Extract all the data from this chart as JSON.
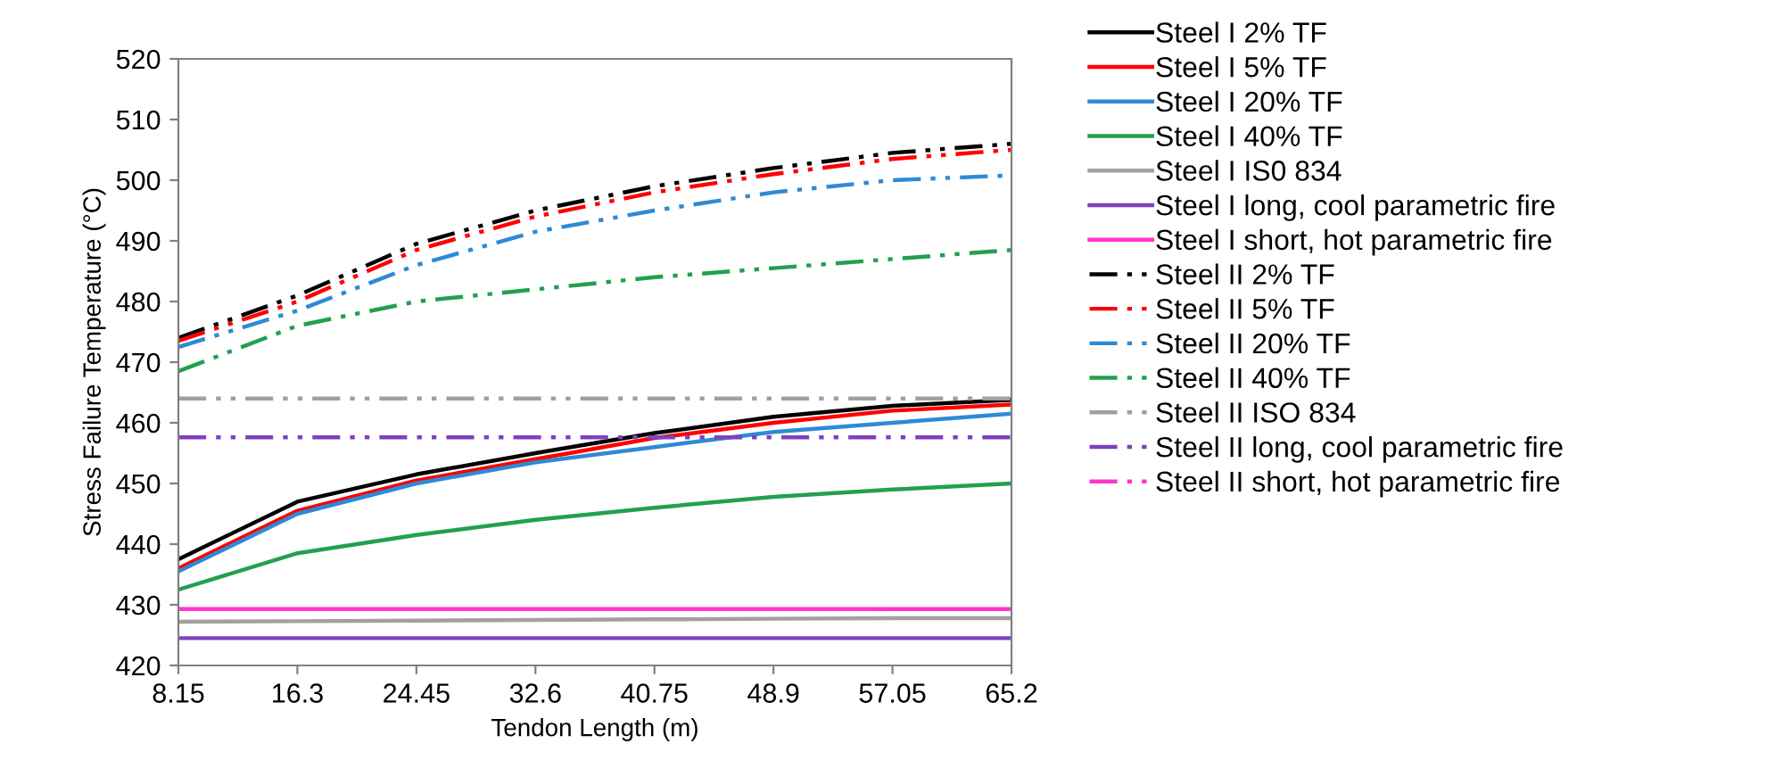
{
  "chart_data": {
    "type": "line",
    "xlabel": "Tendon Length (m)",
    "ylabel": "Stress Failure Temperature (°C)",
    "x": [
      8.15,
      16.3,
      24.45,
      32.6,
      40.75,
      48.9,
      57.05,
      65.2
    ],
    "xlim": [
      8.15,
      65.2
    ],
    "xticks": [
      8.15,
      16.3,
      24.45,
      32.6,
      40.75,
      48.9,
      57.05,
      65.2
    ],
    "ylim": [
      420,
      520
    ],
    "yticks": [
      420,
      430,
      440,
      450,
      460,
      470,
      480,
      490,
      500,
      510,
      520
    ],
    "grid": false,
    "legend": "right",
    "marker": "none",
    "series": [
      {
        "name": "Steel I 2% TF",
        "color": "#000000",
        "line_style": "solid",
        "values": [
          437.5,
          447,
          451.5,
          455,
          458.3,
          461,
          462.8,
          463.8
        ]
      },
      {
        "name": "Steel I 5% TF",
        "color": "#ff0000",
        "line_style": "solid",
        "values": [
          436,
          445.5,
          450.5,
          454,
          457.5,
          460,
          462,
          463
        ]
      },
      {
        "name": "Steel I 20% TF",
        "color": "#2e8ad6",
        "line_style": "solid",
        "values": [
          435.5,
          445,
          450,
          453.5,
          456,
          458.5,
          460,
          461.5
        ]
      },
      {
        "name": "Steel I 40% TF",
        "color": "#22a050",
        "line_style": "solid",
        "values": [
          432.5,
          438.5,
          441.5,
          444,
          446,
          447.8,
          449,
          450
        ]
      },
      {
        "name": "Steel I IS0 834",
        "color": "#a0a0a0",
        "line_style": "solid",
        "values": [
          427.2,
          427.3,
          427.4,
          427.5,
          427.6,
          427.7,
          427.8,
          427.8
        ]
      },
      {
        "name": "Steel I long, cool parametric fire",
        "color": "#8040c0",
        "line_style": "solid",
        "values": [
          424.5,
          424.5,
          424.5,
          424.5,
          424.5,
          424.5,
          424.5,
          424.5
        ]
      },
      {
        "name": "Steel I short, hot parametric fire",
        "color": "#ff33cc",
        "line_style": "solid",
        "values": [
          429.3,
          429.3,
          429.3,
          429.3,
          429.3,
          429.3,
          429.3,
          429.3
        ]
      },
      {
        "name": "Steel II 2% TF",
        "color": "#000000",
        "line_style": "dashed",
        "values": [
          474,
          481,
          489.5,
          495,
          499,
          502,
          504.5,
          506
        ]
      },
      {
        "name": "Steel II 5% TF",
        "color": "#ff0000",
        "line_style": "dashed",
        "values": [
          473.5,
          480,
          488.5,
          494,
          498,
          501,
          503.5,
          505
        ]
      },
      {
        "name": "Steel II 20% TF",
        "color": "#2e8ad6",
        "line_style": "dashed",
        "values": [
          472.5,
          478.5,
          486,
          491.5,
          495,
          498,
          500,
          500.8
        ]
      },
      {
        "name": "Steel II 40% TF",
        "color": "#22a050",
        "line_style": "dashed",
        "values": [
          468.5,
          476,
          480,
          482,
          484,
          485.5,
          487,
          488.5
        ]
      },
      {
        "name": "Steel II ISO 834",
        "color": "#a0a0a0",
        "line_style": "dashed",
        "values": [
          464,
          464,
          464,
          464,
          464,
          464,
          464,
          464
        ]
      },
      {
        "name": "Steel II long, cool parametric fire",
        "color": "#8040c0",
        "line_style": "dashed",
        "values": [
          457.6,
          457.6,
          457.6,
          457.6,
          457.6,
          457.6,
          457.6,
          457.6
        ]
      },
      {
        "name": "Steel II short, hot parametric fire",
        "color": "#ff33cc",
        "line_style": "dashed",
        "values": [
          null,
          null,
          null,
          null,
          null,
          null,
          null,
          null
        ]
      }
    ]
  }
}
